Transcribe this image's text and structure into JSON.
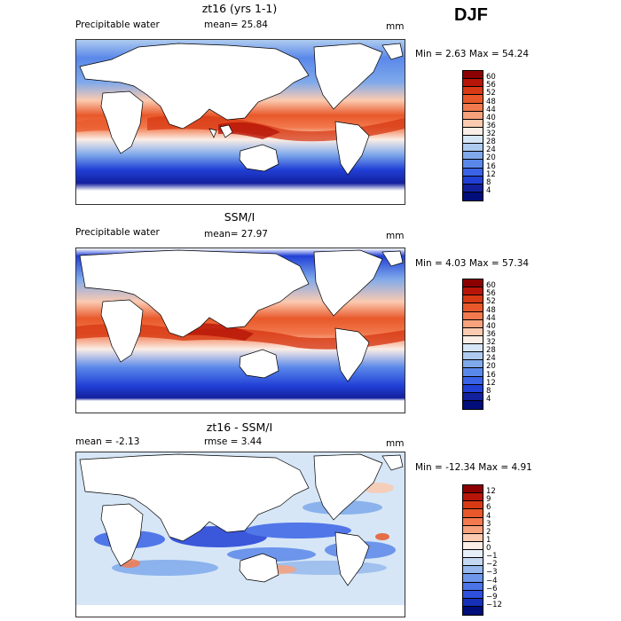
{
  "season": "DJF",
  "panels": [
    {
      "title": "zt16 (yrs 1-1)",
      "left_label": "Precipitable water",
      "mid_label": "mean=  25.84",
      "units": "mm",
      "minmax": "Min =   2.63 Max =  54.24",
      "colorbar_ticks": [
        "60",
        "56",
        "52",
        "48",
        "44",
        "40",
        "36",
        "32",
        "28",
        "24",
        "20",
        "16",
        "12",
        "8",
        "4"
      ],
      "colorbar_colors": [
        "#8b0000",
        "#b71508",
        "#d73a14",
        "#e8582a",
        "#f27a4e",
        "#f7a27c",
        "#fbcab0",
        "#fbeee6",
        "#d6e6f6",
        "#aecbef",
        "#7fa9eb",
        "#5a88ea",
        "#3a63e6",
        "#2140d6",
        "#12209e",
        "#000d7a"
      ]
    },
    {
      "title": "SSM/I",
      "left_label": "Precipitable water",
      "mid_label": "mean=  27.97",
      "units": "mm",
      "minmax": "Min =   4.03 Max =  57.34",
      "colorbar_ticks": [
        "60",
        "56",
        "52",
        "48",
        "44",
        "40",
        "36",
        "32",
        "28",
        "24",
        "20",
        "16",
        "12",
        "8",
        "4"
      ],
      "colorbar_colors": [
        "#8b0000",
        "#b71508",
        "#d73a14",
        "#e8582a",
        "#f27a4e",
        "#f7a27c",
        "#fbcab0",
        "#fbeee6",
        "#d6e6f6",
        "#aecbef",
        "#7fa9eb",
        "#5a88ea",
        "#3a63e6",
        "#2140d6",
        "#12209e",
        "#000d7a"
      ]
    },
    {
      "title": "zt16 - SSM/I",
      "left_label": "mean =  -2.13",
      "mid_label": "rmse =   3.44",
      "units": "mm",
      "minmax": "Min = -12.34 Max =   4.91",
      "colorbar_ticks": [
        "12",
        "9",
        "6",
        "4",
        "3",
        "2",
        "1",
        "0",
        "−1",
        "−2",
        "−3",
        "−4",
        "−6",
        "−9",
        "−12"
      ],
      "colorbar_colors": [
        "#8b0000",
        "#b71508",
        "#d73a14",
        "#e8582a",
        "#f27a4e",
        "#f7a27c",
        "#fbcab0",
        "#fbeee6",
        "#e6eef8",
        "#c4d8f2",
        "#96b8ec",
        "#6e96ea",
        "#4a74e8",
        "#2e50dc",
        "#1630b8",
        "#000d7a"
      ]
    }
  ],
  "chart_data": [
    {
      "type": "heatmap",
      "title": "zt16 (yrs 1-1)",
      "series": [
        {
          "name": "Precipitable water",
          "values": [
            25.84
          ]
        }
      ],
      "mean": 25.84,
      "min": 2.63,
      "max": 54.24,
      "units": "mm",
      "contour_levels": [
        4,
        8,
        12,
        16,
        20,
        24,
        28,
        32,
        36,
        40,
        44,
        48,
        52,
        56,
        60
      ]
    },
    {
      "type": "heatmap",
      "title": "SSM/I",
      "series": [
        {
          "name": "Precipitable water",
          "values": [
            27.97
          ]
        }
      ],
      "mean": 27.97,
      "min": 4.03,
      "max": 57.34,
      "units": "mm",
      "contour_levels": [
        4,
        8,
        12,
        16,
        20,
        24,
        28,
        32,
        36,
        40,
        44,
        48,
        52,
        56,
        60
      ]
    },
    {
      "type": "heatmap",
      "title": "zt16 - SSM/I",
      "mean": -2.13,
      "rmse": 3.44,
      "min": -12.34,
      "max": 4.91,
      "units": "mm",
      "contour_levels": [
        -12,
        -9,
        -6,
        -4,
        -3,
        -2,
        -1,
        0,
        1,
        2,
        3,
        4,
        6,
        9,
        12
      ]
    }
  ]
}
